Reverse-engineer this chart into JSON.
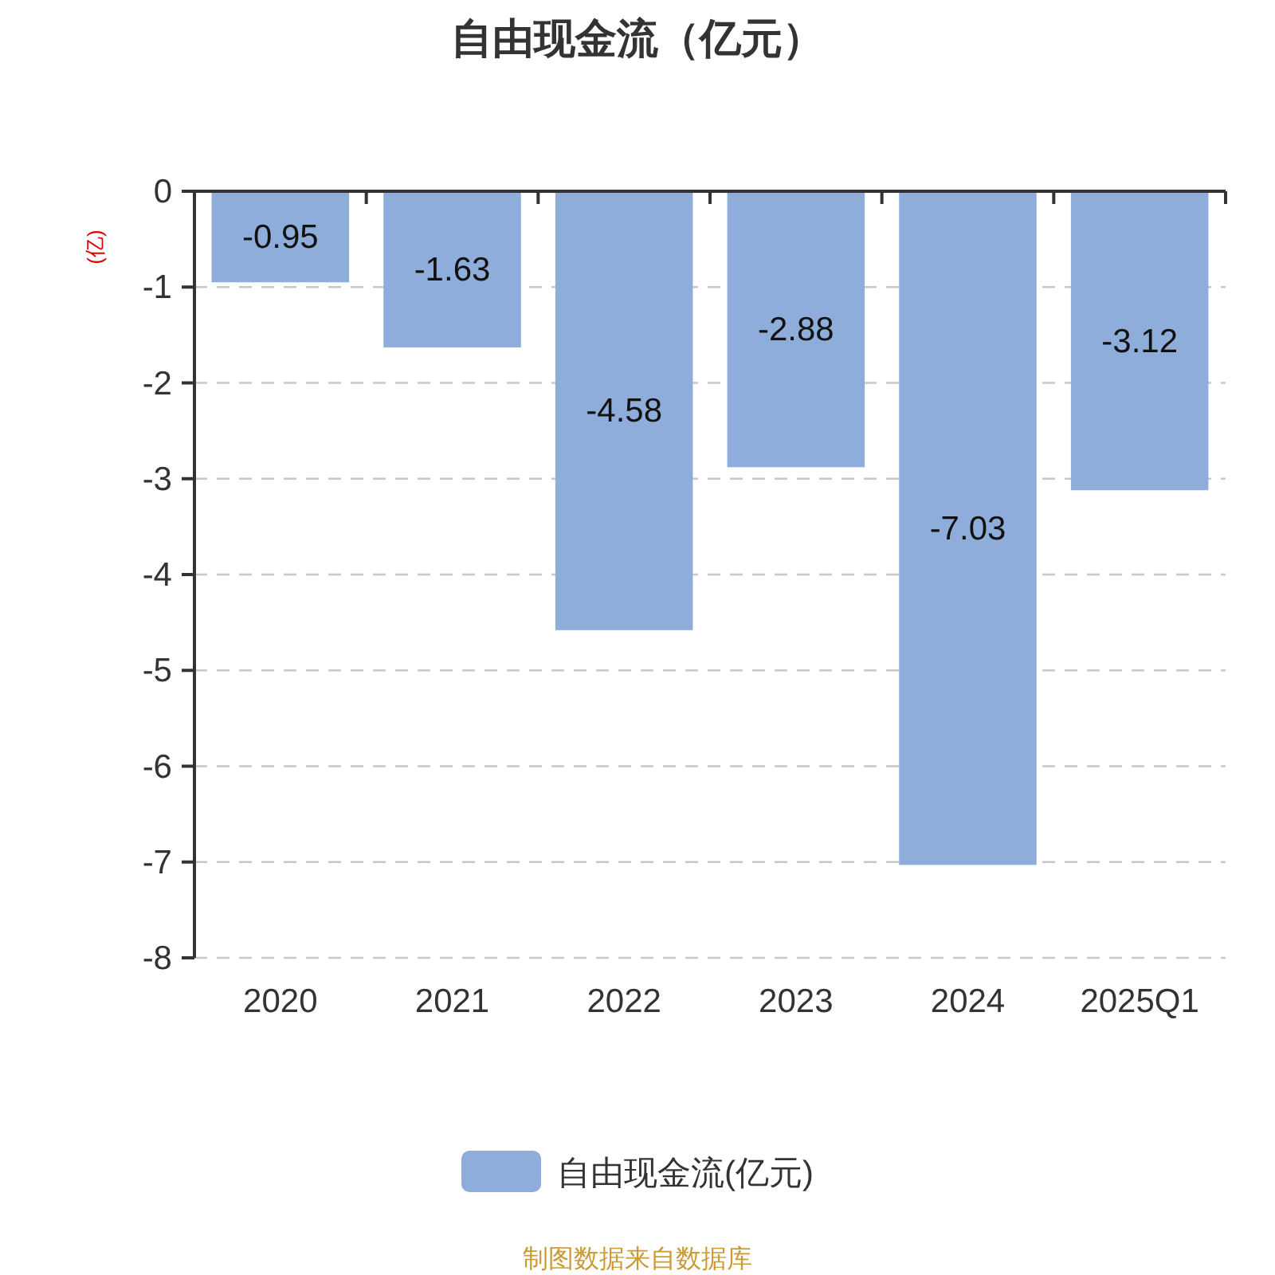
{
  "chart_data": {
    "type": "bar",
    "title": "自由现金流（亿元）",
    "ylabel": "(亿)",
    "categories": [
      "2020",
      "2021",
      "2022",
      "2023",
      "2024",
      "2025Q1"
    ],
    "series": [
      {
        "name": "自由现金流(亿元)",
        "color": "#8eadda",
        "values": [
          -0.95,
          -1.63,
          -4.58,
          -2.88,
          -7.03,
          -3.12
        ]
      }
    ],
    "ylim": [
      -8,
      0
    ],
    "yticks": [
      0,
      -1,
      -2,
      -3,
      -4,
      -5,
      -6,
      -7,
      -8
    ],
    "grid": "y",
    "data_labels": true,
    "legend": "bottom",
    "annotations": [
      "制图数据来自数据库"
    ]
  }
}
